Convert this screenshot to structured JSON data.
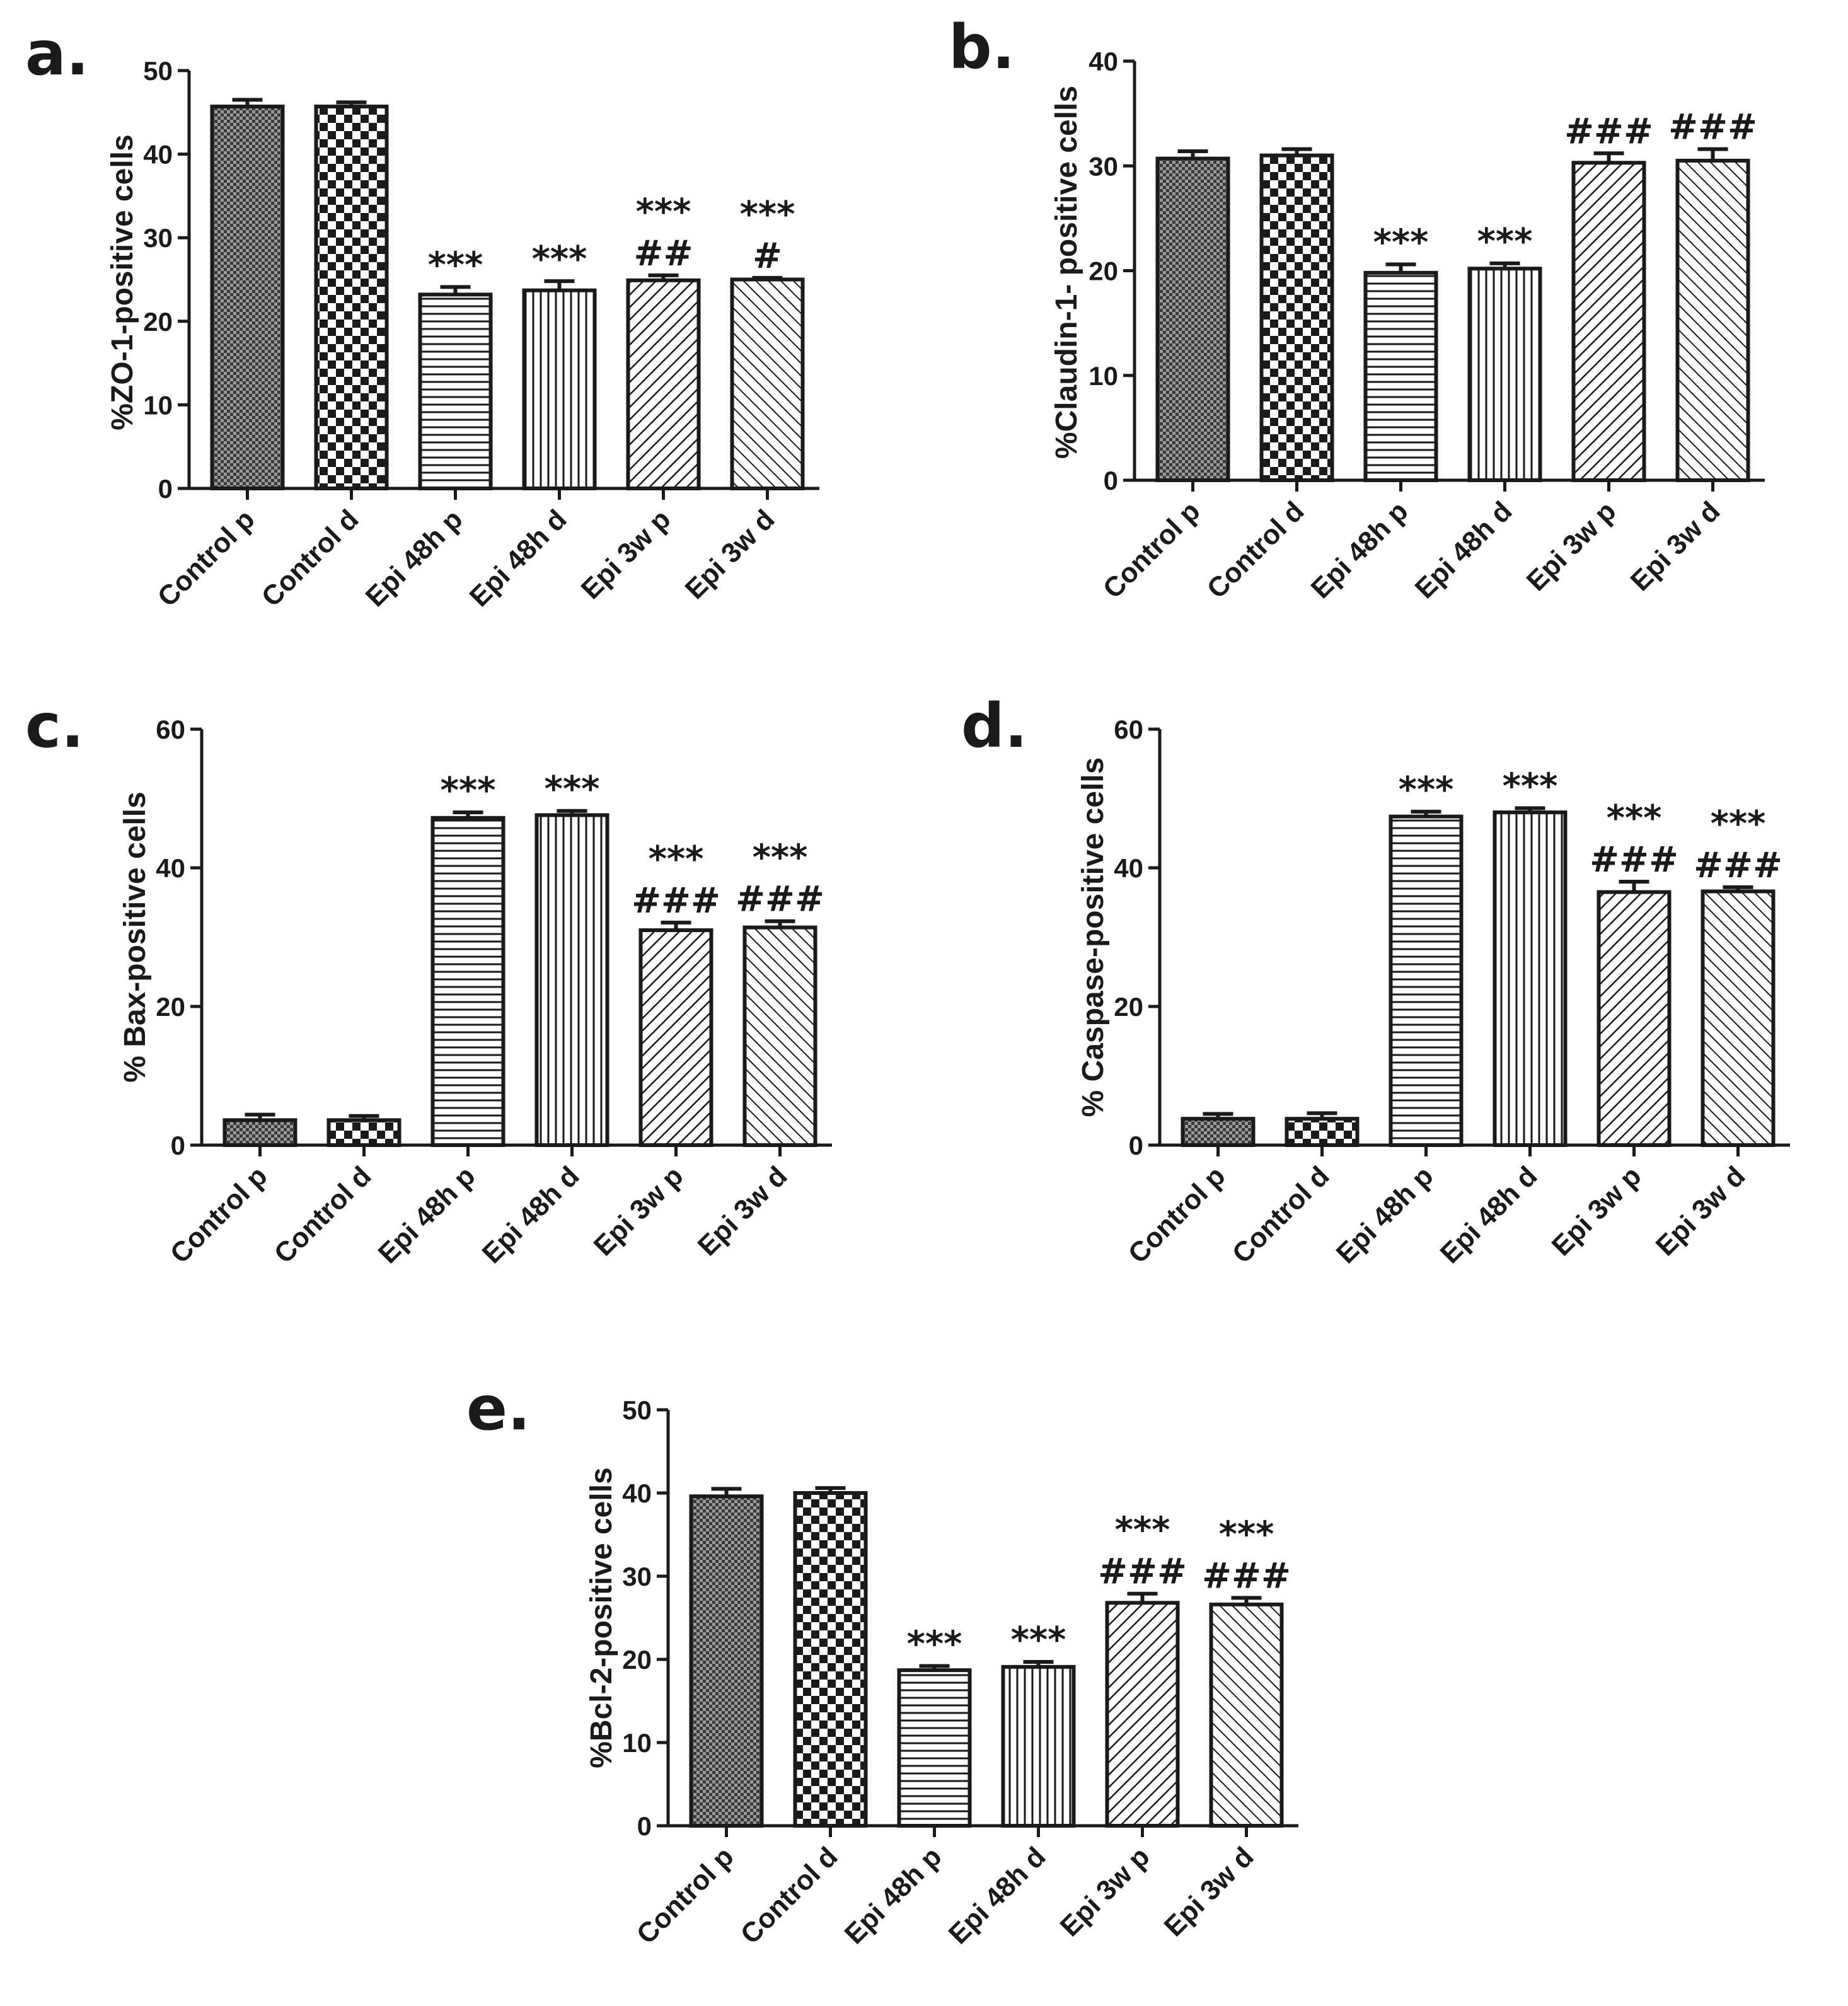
{
  "figure": {
    "patterns": [
      "crosshatch-dense",
      "checker",
      "horizontal",
      "vertical",
      "diag-fwd",
      "diag-back"
    ]
  },
  "chart_data": [
    {
      "panel": "a.",
      "type": "bar",
      "title": "",
      "xlabel": "",
      "ylabel": "%ZO-1-positive cells",
      "categories": [
        "Control p",
        "Control d",
        "Epi 48h p",
        "Epi 48h d",
        "Epi 3w p",
        "Epi 3w d"
      ],
      "values": [
        45.7,
        45.7,
        23.2,
        23.7,
        24.9,
        25.0
      ],
      "errors": [
        0.8,
        0.5,
        0.9,
        1.1,
        0.6,
        0.2
      ],
      "ylim": [
        0,
        50
      ],
      "yticks": [
        "0",
        "10",
        "20",
        "30",
        "40",
        "50"
      ],
      "annotations": [
        [],
        [],
        [
          "***"
        ],
        [
          "***"
        ],
        [
          "***",
          "##"
        ],
        [
          "***",
          "#"
        ]
      ]
    },
    {
      "panel": "b.",
      "type": "bar",
      "title": "",
      "xlabel": "",
      "ylabel": "%Claudin-1- positive cells",
      "categories": [
        "Control p",
        "Control d",
        "Epi 48h p",
        "Epi 48h d",
        "Epi 3w p",
        "Epi 3w d"
      ],
      "values": [
        30.7,
        31.0,
        19.8,
        20.2,
        30.3,
        30.5
      ],
      "errors": [
        0.7,
        0.6,
        0.8,
        0.5,
        0.9,
        1.1
      ],
      "ylim": [
        0,
        40
      ],
      "yticks": [
        "0",
        "10",
        "20",
        "30",
        "40"
      ],
      "annotations": [
        [],
        [],
        [
          "***"
        ],
        [
          "***"
        ],
        [
          "###"
        ],
        [
          "###"
        ]
      ]
    },
    {
      "panel": "c.",
      "type": "bar",
      "title": "",
      "xlabel": "",
      "ylabel": "% Bax-positive cells",
      "categories": [
        "Control p",
        "Control d",
        "Epi 48h p",
        "Epi 48h d",
        "Epi 3w p",
        "Epi 3w d"
      ],
      "values": [
        3.6,
        3.6,
        47.2,
        47.6,
        31.0,
        31.4
      ],
      "errors": [
        0.8,
        0.6,
        0.8,
        0.6,
        1.1,
        0.9
      ],
      "ylim": [
        0,
        60
      ],
      "yticks": [
        "0",
        "20",
        "40",
        "60"
      ],
      "annotations": [
        [],
        [],
        [
          "***"
        ],
        [
          "***"
        ],
        [
          "***",
          "###"
        ],
        [
          "***",
          "###"
        ]
      ]
    },
    {
      "panel": "d.",
      "type": "bar",
      "title": "",
      "xlabel": "",
      "ylabel": "% Caspase-positive cells",
      "categories": [
        "Control p",
        "Control d",
        "Epi 48h p",
        "Epi 48h d",
        "Epi 3w p",
        "Epi 3w d"
      ],
      "values": [
        3.8,
        3.8,
        47.4,
        48.0,
        36.5,
        36.6
      ],
      "errors": [
        0.7,
        0.8,
        0.7,
        0.6,
        1.5,
        0.6
      ],
      "ylim": [
        0,
        60
      ],
      "yticks": [
        "0",
        "20",
        "40",
        "60"
      ],
      "annotations": [
        [],
        [],
        [
          "***"
        ],
        [
          "***"
        ],
        [
          "***",
          "###"
        ],
        [
          "***",
          "###"
        ]
      ]
    },
    {
      "panel": "e.",
      "type": "bar",
      "title": "",
      "xlabel": "",
      "ylabel": "%Bcl-2-positive cells",
      "categories": [
        "Control p",
        "Control d",
        "Epi 48h p",
        "Epi 48h d",
        "Epi 3w p",
        "Epi 3w d"
      ],
      "values": [
        39.6,
        40.0,
        18.7,
        19.1,
        26.8,
        26.6
      ],
      "errors": [
        0.9,
        0.6,
        0.5,
        0.6,
        1.1,
        0.8
      ],
      "ylim": [
        0,
        50
      ],
      "yticks": [
        "0",
        "10",
        "20",
        "30",
        "40",
        "50"
      ],
      "annotations": [
        [],
        [],
        [
          "***"
        ],
        [
          "***"
        ],
        [
          "***",
          "###"
        ],
        [
          "***",
          "###"
        ]
      ]
    }
  ]
}
